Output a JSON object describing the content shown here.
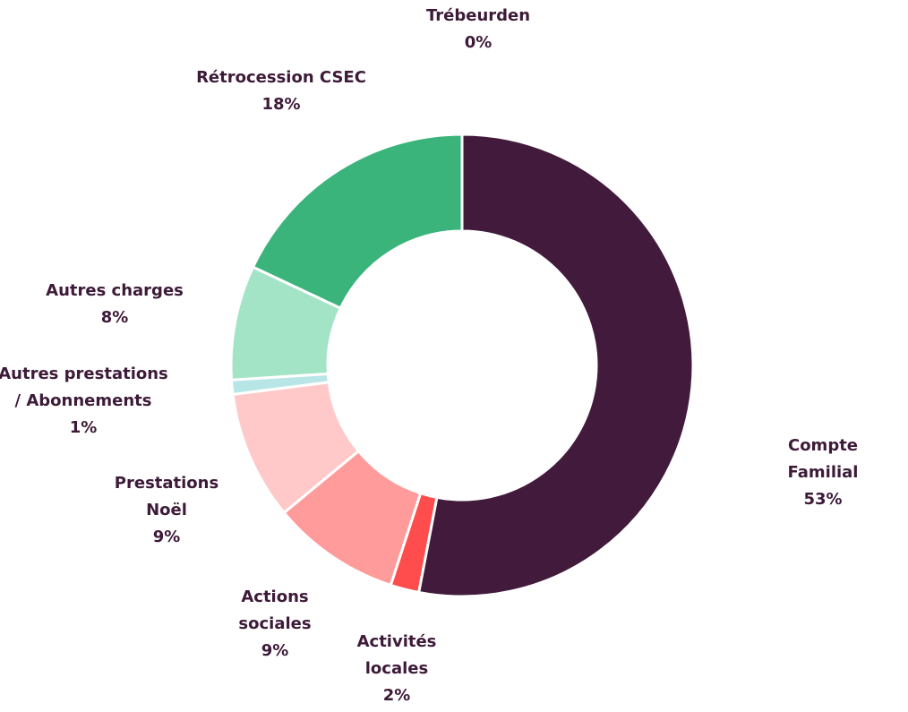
{
  "chart_data": {
    "type": "donut",
    "categories": [
      "Compte Familial",
      "Activités\nlocales",
      "Actions\nsociales",
      "Prestations\nNoël",
      "Autres prestations\n/ Abonnements",
      "Autres charges",
      "Rétrocession CSEC",
      "Trébeurden"
    ],
    "values": [
      53,
      2,
      9,
      9,
      1,
      8,
      18,
      0
    ],
    "value_labels": [
      "53%",
      "2%",
      "9%",
      "9%",
      "1%",
      "8%",
      "18%",
      "0%"
    ],
    "colors": [
      "#421a3c",
      "#ff4d4d",
      "#ff9b9b",
      "#ffc9c9",
      "#b8e6e6",
      "#a3e4c6",
      "#3ab47a",
      "#2a7a50"
    ]
  }
}
